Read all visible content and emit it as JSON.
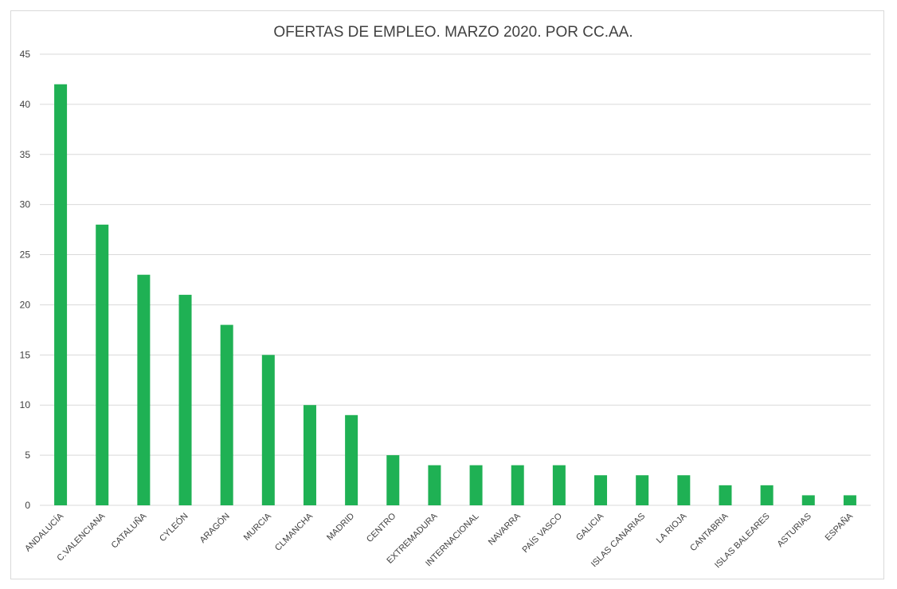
{
  "chart_data": {
    "type": "bar",
    "title": "OFERTAS DE EMPLEO. MARZO 2020. POR CC.AA.",
    "xlabel": "",
    "ylabel": "",
    "ylim": [
      0,
      45
    ],
    "yticks": [
      0,
      5,
      10,
      15,
      20,
      25,
      30,
      35,
      40,
      45
    ],
    "grid": true,
    "legend": "none",
    "bar_color": "#1fb154",
    "categories": [
      "ANDALUCÍA",
      "C.VALENCIANA",
      "CATALUÑA",
      "CYLEÓN",
      "ARAGÓN",
      "MURCIA",
      "CLMANCHA",
      "MADRID",
      "CENTRO",
      "EXTREMADURA",
      "INTERNACIONAL",
      "NAVARRA",
      "PAÍS VASCO",
      "GALICIA",
      "ISLAS CANARIAS",
      "LA RIOJA",
      "CANTABRIA",
      "ISLAS BALEARES",
      "ASTURIAS",
      "ESPAÑA"
    ],
    "values": [
      42,
      28,
      23,
      21,
      18,
      15,
      10,
      9,
      5,
      4,
      4,
      4,
      4,
      3,
      3,
      3,
      2,
      2,
      1,
      1
    ]
  }
}
